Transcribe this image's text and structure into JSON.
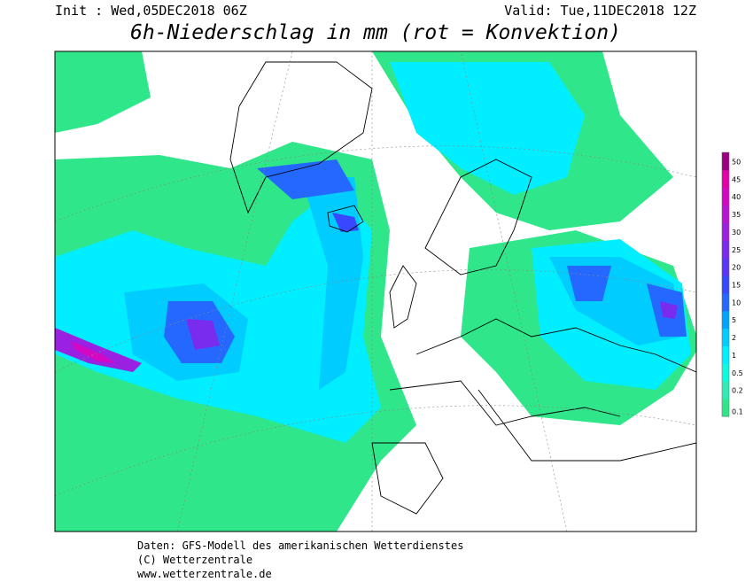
{
  "header": {
    "init": "Init : Wed,05DEC2018 06Z",
    "valid": "Valid: Tue,11DEC2018 12Z",
    "title": "6h-Niederschlag in mm (rot = Konvektion)"
  },
  "legend": {
    "levels": [
      {
        "value": 0.1,
        "color": "#2fe68a"
      },
      {
        "value": 0.2,
        "color": "#30ecb4"
      },
      {
        "value": 0.5,
        "color": "#10f8de"
      },
      {
        "value": 1,
        "color": "#00eeff"
      },
      {
        "value": 2,
        "color": "#00ccff"
      },
      {
        "value": 5,
        "color": "#00a4ff"
      },
      {
        "value": 10,
        "color": "#2468ff"
      },
      {
        "value": 15,
        "color": "#3848ff"
      },
      {
        "value": 20,
        "color": "#5a34f8"
      },
      {
        "value": 25,
        "color": "#7a2cee"
      },
      {
        "value": 30,
        "color": "#9a20e2"
      },
      {
        "value": 35,
        "color": "#b814d4"
      },
      {
        "value": 40,
        "color": "#d408c4"
      },
      {
        "value": 45,
        "color": "#e400a8"
      },
      {
        "value": 50,
        "color": "#9c0080"
      }
    ]
  },
  "footer": {
    "lines": [
      "Daten: GFS-Modell des amerikanischen Wetterdienstes",
      "(C) Wetterzentrale",
      "www.wetterzentrale.de"
    ]
  }
}
